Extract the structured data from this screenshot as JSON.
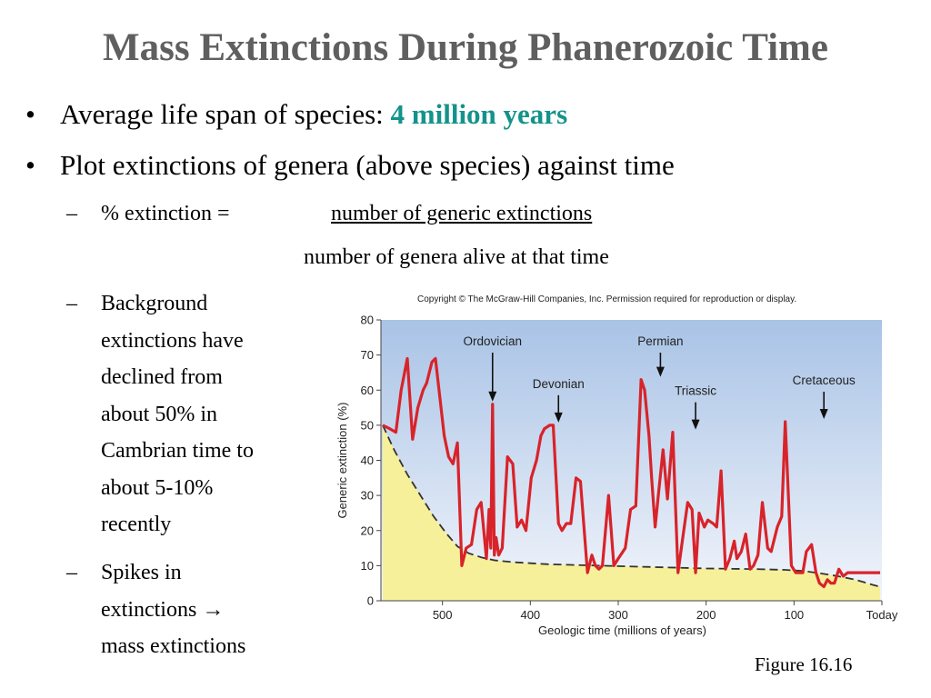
{
  "slide": {
    "title": "Mass Extinctions During Phanerozoic Time",
    "bullet1_text": "Average life span of species: ",
    "bullet1_highlight": "4 million years",
    "bullet2_text": "Plot extinctions of genera (above species) against time",
    "formula_label": "% extinction =",
    "formula_numerator": "number of generic extinctions",
    "formula_denominator": "number of genera alive at that time",
    "sub2_lines": [
      "Background",
      "extinctions have",
      "declined from",
      "about 50% in",
      "Cambrian time to",
      "about 5-10%",
      "recently"
    ],
    "sub3_lines": [
      "Spikes in",
      "extinctions →",
      "mass extinctions"
    ],
    "bullet_symbol": "•",
    "dash_symbol": "–",
    "caption": "Figure 16.16",
    "highlight_color": "#13938a",
    "title_color": "#5f5f5f"
  },
  "chart_data": {
    "type": "line",
    "copyright": "Copyright © The McGraw-Hill Companies, Inc. Permission required for reproduction or display.",
    "xlabel": "Geologic time (millions of years)",
    "ylabel": "Generic extinction (%)",
    "xlim": [
      570,
      0
    ],
    "ylim": [
      0,
      80
    ],
    "x_ticks": [
      500,
      400,
      300,
      200,
      100,
      0
    ],
    "x_tick_labels": [
      "500",
      "400",
      "300",
      "200",
      "100",
      "Today"
    ],
    "y_ticks": [
      0,
      10,
      20,
      30,
      40,
      50,
      60,
      70,
      80
    ],
    "colors": {
      "series": "#d8232a",
      "background_line": "#333333",
      "fill": "#f7f09a",
      "sky_top": "#a9c3e6",
      "sky_bottom": "#f2f5fb"
    },
    "series": [
      {
        "x": [
          568,
          560,
          553,
          547,
          540,
          534,
          528,
          522,
          518,
          512,
          508,
          503,
          498,
          493,
          488,
          483,
          478,
          473,
          467,
          461,
          456,
          450,
          447,
          445,
          443,
          441,
          439,
          436,
          432,
          426,
          420,
          415,
          410,
          405,
          399,
          393,
          388,
          384,
          378,
          374,
          368,
          364,
          359,
          354,
          348,
          343,
          335,
          330,
          326,
          322,
          318,
          311,
          305,
          300,
          292,
          286,
          280,
          274,
          270,
          265,
          262,
          258,
          254,
          249,
          244,
          238,
          232,
          226,
          221,
          216,
          212,
          208,
          202,
          198,
          192,
          188,
          183,
          178,
          173,
          168,
          165,
          160,
          155,
          150,
          146,
          141,
          136,
          130,
          126,
          119,
          114,
          110,
          103,
          98,
          94,
          90,
          86,
          80,
          75,
          71,
          66,
          62,
          58,
          54,
          49,
          44,
          39,
          35,
          30,
          24,
          20,
          16,
          12,
          8,
          4,
          2
        ],
        "y": [
          50,
          49,
          48,
          60,
          69,
          46,
          55,
          60,
          62,
          68,
          69,
          58,
          47,
          41,
          39,
          45,
          10,
          15,
          16,
          26,
          28,
          12,
          26,
          15,
          56,
          13,
          18,
          13,
          15,
          41,
          39,
          21,
          23,
          20,
          35,
          40,
          47,
          49,
          50,
          50,
          22,
          20,
          22,
          22,
          35,
          34,
          8,
          13,
          10,
          9,
          10,
          30,
          10,
          12,
          15,
          26,
          27,
          63,
          60,
          47,
          35,
          21,
          31,
          43,
          29,
          48,
          8,
          19,
          28,
          26,
          8,
          25,
          21,
          23,
          22,
          21,
          37,
          9,
          12,
          17,
          12,
          14,
          19,
          9,
          10,
          13,
          28,
          15,
          14,
          21,
          24,
          51,
          10,
          8,
          8,
          8,
          14,
          16,
          8,
          5,
          4,
          6,
          5,
          5,
          9,
          7,
          8,
          8,
          8,
          8,
          8,
          8,
          8,
          8,
          8,
          8
        ]
      }
    ],
    "background_curve": {
      "x": [
        568,
        555,
        540,
        525,
        510,
        495,
        483,
        470,
        455,
        440,
        420,
        400,
        380,
        350,
        320,
        290,
        260,
        230,
        200,
        170,
        140,
        110,
        90,
        70,
        50,
        30,
        10,
        2
      ],
      "y": [
        50,
        43,
        36,
        30,
        24,
        19,
        15.5,
        13.5,
        12.3,
        11.5,
        11,
        10.7,
        10.4,
        10.2,
        10,
        9.8,
        9.6,
        9.4,
        9.2,
        9.1,
        9,
        8.8,
        8.5,
        7.8,
        7,
        6,
        4.5,
        4
      ]
    },
    "annotations": [
      {
        "label": "Ordovician",
        "x": 443,
        "y": 56
      },
      {
        "label": "Devonian",
        "x": 368,
        "y": 50
      },
      {
        "label": "Permian",
        "x": 252,
        "y": 63
      },
      {
        "label": "Triassic",
        "x": 212,
        "y": 48
      },
      {
        "label": "Cretaceous",
        "x": 66,
        "y": 51
      }
    ]
  }
}
